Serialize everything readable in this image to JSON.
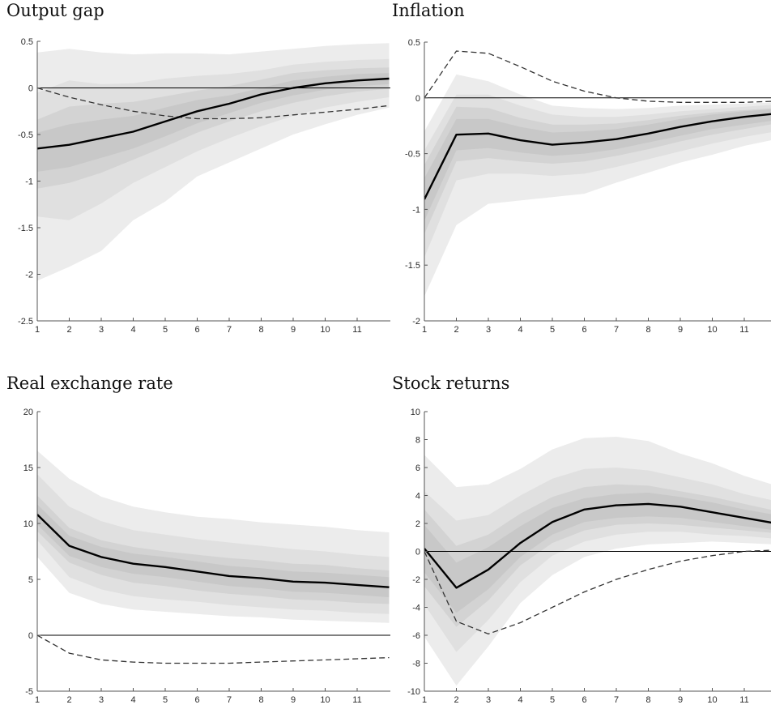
{
  "chart_data": [
    {
      "type": "line",
      "title": "Output gap",
      "xlim": [
        1,
        12
      ],
      "ylim": [
        -2.5,
        0.5
      ],
      "xticks": [
        1,
        2,
        3,
        4,
        5,
        6,
        7,
        8,
        9,
        10,
        11
      ],
      "yticks": [
        0.5,
        0,
        -0.5,
        -1,
        -1.5,
        -2,
        -2.5
      ],
      "ytick_labels": [
        "0.5",
        "0",
        "-0.5",
        "-1",
        "-1.5",
        "-2",
        "-2.5"
      ],
      "x": [
        1,
        2,
        3,
        4,
        5,
        6,
        7,
        8,
        9,
        10,
        11,
        12
      ],
      "zero_line": true,
      "grid": false,
      "median": [
        -0.65,
        -0.61,
        -0.54,
        -0.47,
        -0.36,
        -0.25,
        -0.17,
        -0.07,
        0.0,
        0.05,
        0.08,
        0.1
      ],
      "dashed": [
        0.0,
        -0.1,
        -0.18,
        -0.25,
        -0.3,
        -0.33,
        -0.33,
        -0.32,
        -0.29,
        -0.26,
        -0.23,
        -0.19
      ],
      "bands": [
        {
          "lower": [
            -2.07,
            -1.92,
            -1.75,
            -1.42,
            -1.22,
            -0.95,
            -0.8,
            -0.65,
            -0.5,
            -0.39,
            -0.29,
            -0.21
          ],
          "upper": [
            0.38,
            0.42,
            0.38,
            0.36,
            0.37,
            0.37,
            0.36,
            0.39,
            0.42,
            0.45,
            0.47,
            0.48
          ]
        },
        {
          "lower": [
            -1.38,
            -1.42,
            -1.24,
            -1.02,
            -0.85,
            -0.68,
            -0.54,
            -0.41,
            -0.3,
            -0.21,
            -0.15,
            -0.1
          ],
          "upper": [
            -0.05,
            0.08,
            0.04,
            0.05,
            0.1,
            0.13,
            0.15,
            0.19,
            0.25,
            0.28,
            0.3,
            0.31
          ]
        },
        {
          "lower": [
            -1.08,
            -1.02,
            -0.91,
            -0.77,
            -0.63,
            -0.48,
            -0.36,
            -0.25,
            -0.16,
            -0.09,
            -0.04,
            -0.01
          ],
          "upper": [
            -0.34,
            -0.2,
            -0.17,
            -0.15,
            -0.09,
            -0.03,
            0.02,
            0.09,
            0.16,
            0.19,
            0.21,
            0.22
          ]
        },
        {
          "lower": [
            -0.9,
            -0.85,
            -0.75,
            -0.65,
            -0.52,
            -0.38,
            -0.27,
            -0.16,
            -0.08,
            -0.02,
            0.02,
            0.04
          ],
          "upper": [
            -0.48,
            -0.39,
            -0.34,
            -0.3,
            -0.21,
            -0.13,
            -0.08,
            0.0,
            0.08,
            0.12,
            0.15,
            0.16
          ]
        }
      ]
    },
    {
      "type": "line",
      "title": "Inflation",
      "xlim": [
        1,
        12
      ],
      "ylim": [
        -2,
        0.5
      ],
      "xticks": [
        1,
        2,
        3,
        4,
        5,
        6,
        7,
        8,
        9,
        10,
        11
      ],
      "yticks": [
        0.5,
        0,
        -0.5,
        -1,
        -1.5,
        -2
      ],
      "ytick_labels": [
        "0.5",
        "0",
        "-0.5",
        "-1",
        "-1.5",
        "-2"
      ],
      "x": [
        1,
        2,
        3,
        4,
        5,
        6,
        7,
        8,
        9,
        10,
        11,
        12
      ],
      "zero_line": true,
      "grid": false,
      "median": [
        -0.91,
        -0.33,
        -0.32,
        -0.38,
        -0.42,
        -0.4,
        -0.37,
        -0.32,
        -0.26,
        -0.21,
        -0.17,
        -0.14
      ],
      "dashed": [
        0.0,
        0.42,
        0.4,
        0.28,
        0.15,
        0.06,
        0.0,
        -0.03,
        -0.04,
        -0.04,
        -0.04,
        -0.03
      ],
      "bands": [
        {
          "lower": [
            -1.78,
            -1.14,
            -0.95,
            -0.92,
            -0.89,
            -0.86,
            -0.76,
            -0.67,
            -0.58,
            -0.51,
            -0.43,
            -0.37
          ],
          "upper": [
            -0.3,
            0.21,
            0.15,
            0.03,
            -0.07,
            -0.09,
            -0.1,
            -0.09,
            -0.07,
            -0.06,
            -0.05,
            -0.04
          ]
        },
        {
          "lower": [
            -1.43,
            -0.74,
            -0.68,
            -0.68,
            -0.7,
            -0.68,
            -0.62,
            -0.55,
            -0.48,
            -0.41,
            -0.35,
            -0.3
          ],
          "upper": [
            -0.47,
            0.03,
            0.03,
            -0.07,
            -0.15,
            -0.17,
            -0.17,
            -0.15,
            -0.12,
            -0.1,
            -0.08,
            -0.06
          ]
        },
        {
          "lower": [
            -1.22,
            -0.57,
            -0.54,
            -0.57,
            -0.59,
            -0.57,
            -0.52,
            -0.46,
            -0.39,
            -0.33,
            -0.28,
            -0.23
          ],
          "upper": [
            -0.6,
            -0.08,
            -0.09,
            -0.18,
            -0.24,
            -0.24,
            -0.23,
            -0.2,
            -0.16,
            -0.13,
            -0.11,
            -0.09
          ]
        },
        {
          "lower": [
            -1.1,
            -0.47,
            -0.45,
            -0.49,
            -0.52,
            -0.5,
            -0.46,
            -0.4,
            -0.34,
            -0.28,
            -0.24,
            -0.2
          ],
          "upper": [
            -0.72,
            -0.19,
            -0.19,
            -0.26,
            -0.31,
            -0.3,
            -0.28,
            -0.24,
            -0.19,
            -0.15,
            -0.12,
            -0.1
          ]
        }
      ]
    },
    {
      "type": "line",
      "title": "Real exchange rate",
      "xlim": [
        1,
        12
      ],
      "ylim": [
        -5,
        20
      ],
      "xticks": [
        1,
        2,
        3,
        4,
        5,
        6,
        7,
        8,
        9,
        10,
        11
      ],
      "yticks": [
        20,
        15,
        10,
        5,
        0,
        -5
      ],
      "ytick_labels": [
        "20",
        "15",
        "10",
        "5",
        "0",
        "-5"
      ],
      "x": [
        1,
        2,
        3,
        4,
        5,
        6,
        7,
        8,
        9,
        10,
        11,
        12
      ],
      "zero_line": true,
      "grid": false,
      "median": [
        10.8,
        8.0,
        7.0,
        6.4,
        6.1,
        5.7,
        5.3,
        5.1,
        4.8,
        4.7,
        4.5,
        4.3
      ],
      "dashed": [
        0.0,
        -1.6,
        -2.2,
        -2.4,
        -2.5,
        -2.5,
        -2.5,
        -2.4,
        -2.3,
        -2.2,
        -2.1,
        -2.0
      ],
      "bands": [
        {
          "lower": [
            7.0,
            3.8,
            2.8,
            2.3,
            2.1,
            1.9,
            1.7,
            1.6,
            1.4,
            1.3,
            1.2,
            1.1
          ],
          "upper": [
            16.5,
            14.0,
            12.4,
            11.5,
            11.0,
            10.6,
            10.4,
            10.1,
            9.9,
            9.7,
            9.4,
            9.2
          ]
        },
        {
          "lower": [
            8.5,
            5.2,
            4.1,
            3.5,
            3.2,
            3.0,
            2.7,
            2.5,
            2.3,
            2.2,
            2.0,
            1.9
          ],
          "upper": [
            14.4,
            11.5,
            10.2,
            9.4,
            9.0,
            8.6,
            8.3,
            8.0,
            7.7,
            7.5,
            7.2,
            7.0
          ]
        },
        {
          "lower": [
            9.3,
            6.5,
            5.4,
            4.7,
            4.4,
            4.0,
            3.7,
            3.5,
            3.2,
            3.1,
            2.9,
            2.8
          ],
          "upper": [
            12.5,
            9.6,
            8.5,
            7.9,
            7.5,
            7.2,
            6.9,
            6.7,
            6.4,
            6.3,
            6.0,
            5.8
          ]
        },
        {
          "lower": [
            9.9,
            7.1,
            6.1,
            5.5,
            5.2,
            4.8,
            4.4,
            4.2,
            3.9,
            3.8,
            3.6,
            3.4
          ],
          "upper": [
            11.7,
            8.9,
            7.9,
            7.3,
            7.0,
            6.6,
            6.2,
            6.0,
            5.7,
            5.6,
            5.4,
            5.2
          ]
        }
      ]
    },
    {
      "type": "line",
      "title": "Stock returns",
      "xlim": [
        1,
        12
      ],
      "ylim": [
        -10,
        10
      ],
      "xticks": [
        1,
        2,
        3,
        4,
        5,
        6,
        7,
        8,
        9,
        10,
        11
      ],
      "yticks": [
        10,
        8,
        6,
        4,
        2,
        0,
        -2,
        -4,
        -6,
        -8,
        -10
      ],
      "ytick_labels": [
        "10",
        "8",
        "6",
        "4",
        "2",
        "0",
        "-2",
        "-4",
        "-6",
        "-8",
        "-10"
      ],
      "x": [
        1,
        2,
        3,
        4,
        5,
        6,
        7,
        8,
        9,
        10,
        11,
        12
      ],
      "zero_line": true,
      "grid": false,
      "median": [
        0.2,
        -2.6,
        -1.3,
        0.6,
        2.1,
        3.0,
        3.3,
        3.4,
        3.2,
        2.8,
        2.4,
        2.0
      ],
      "dashed": [
        0.0,
        -5.0,
        -5.9,
        -5.1,
        -4.0,
        -2.9,
        -2.0,
        -1.3,
        -0.7,
        -0.3,
        0.0,
        0.1
      ],
      "bands": [
        {
          "lower": [
            -6.1,
            -9.6,
            -6.8,
            -3.7,
            -1.7,
            -0.4,
            0.2,
            0.5,
            0.6,
            0.7,
            0.6,
            0.5
          ],
          "upper": [
            6.9,
            4.6,
            4.8,
            5.9,
            7.3,
            8.1,
            8.2,
            7.9,
            7.0,
            6.3,
            5.4,
            4.7
          ]
        },
        {
          "lower": [
            -3.8,
            -7.2,
            -4.9,
            -2.2,
            -0.3,
            0.7,
            1.2,
            1.4,
            1.4,
            1.2,
            1.1,
            0.9
          ],
          "upper": [
            4.3,
            2.2,
            2.6,
            4.0,
            5.2,
            5.9,
            6.0,
            5.8,
            5.3,
            4.8,
            4.1,
            3.6
          ]
        },
        {
          "lower": [
            -2.5,
            -5.4,
            -3.5,
            -1.0,
            0.6,
            1.5,
            1.9,
            2.0,
            1.9,
            1.7,
            1.5,
            1.3
          ],
          "upper": [
            3.0,
            0.4,
            1.2,
            2.7,
            3.9,
            4.6,
            4.8,
            4.7,
            4.3,
            3.9,
            3.4,
            2.9
          ]
        },
        {
          "lower": [
            -1.5,
            -4.4,
            -2.7,
            -0.4,
            1.2,
            2.1,
            2.4,
            2.5,
            2.4,
            2.1,
            1.8,
            1.5
          ],
          "upper": [
            1.9,
            -0.8,
            0.3,
            1.8,
            3.1,
            3.8,
            4.1,
            4.2,
            3.9,
            3.5,
            3.0,
            2.6
          ]
        }
      ]
    }
  ],
  "colors": {
    "band_outer": "#ececec",
    "band_mid": "#e0e0e0",
    "band_inner": "#d3d3d3",
    "band_core": "#c8c8c8",
    "median_line": "#000000",
    "dashed_line": "#333333",
    "axis": "#555555"
  }
}
